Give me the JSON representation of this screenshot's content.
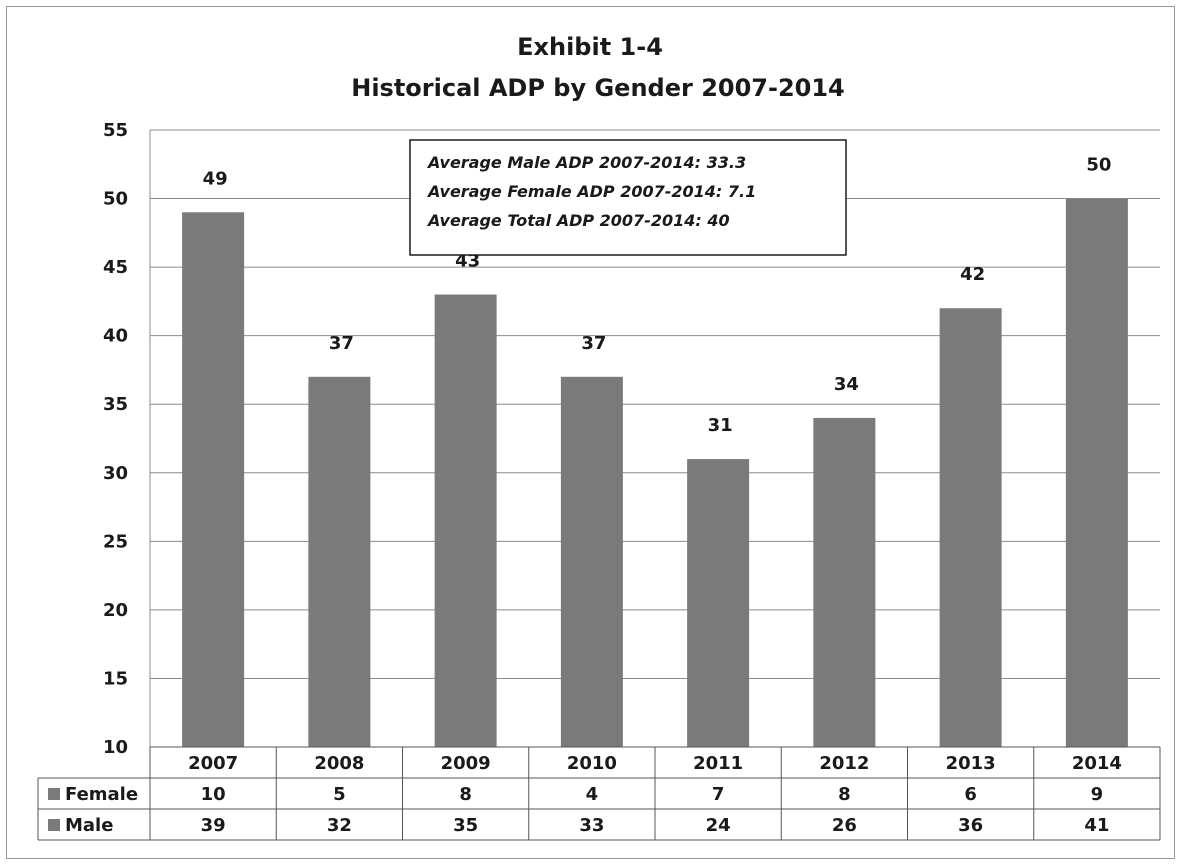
{
  "chart_data": {
    "type": "bar",
    "title": "Exhibit 1-4",
    "subtitle": "Historical ADP by Gender 2007-2014",
    "categories": [
      "2007",
      "2008",
      "2009",
      "2010",
      "2011",
      "2012",
      "2013",
      "2014"
    ],
    "values": [
      49,
      37,
      43,
      37,
      31,
      34,
      42,
      50
    ],
    "ylim": [
      10,
      55
    ],
    "yticks": [
      10,
      15,
      20,
      25,
      30,
      35,
      40,
      45,
      50,
      55
    ],
    "grid": true,
    "bar_color": "#7a7a7a",
    "data_table": [
      {
        "name": "Female",
        "values": [
          10,
          5,
          8,
          4,
          7,
          8,
          6,
          9
        ]
      },
      {
        "name": "Male",
        "values": [
          39,
          32,
          35,
          33,
          24,
          26,
          36,
          41
        ]
      }
    ],
    "annotations": [
      "Average Male ADP 2007-2014: 33.3",
      "Average Female ADP 2007-2014: 7.1",
      "Average Total ADP 2007-2014: 40"
    ]
  }
}
